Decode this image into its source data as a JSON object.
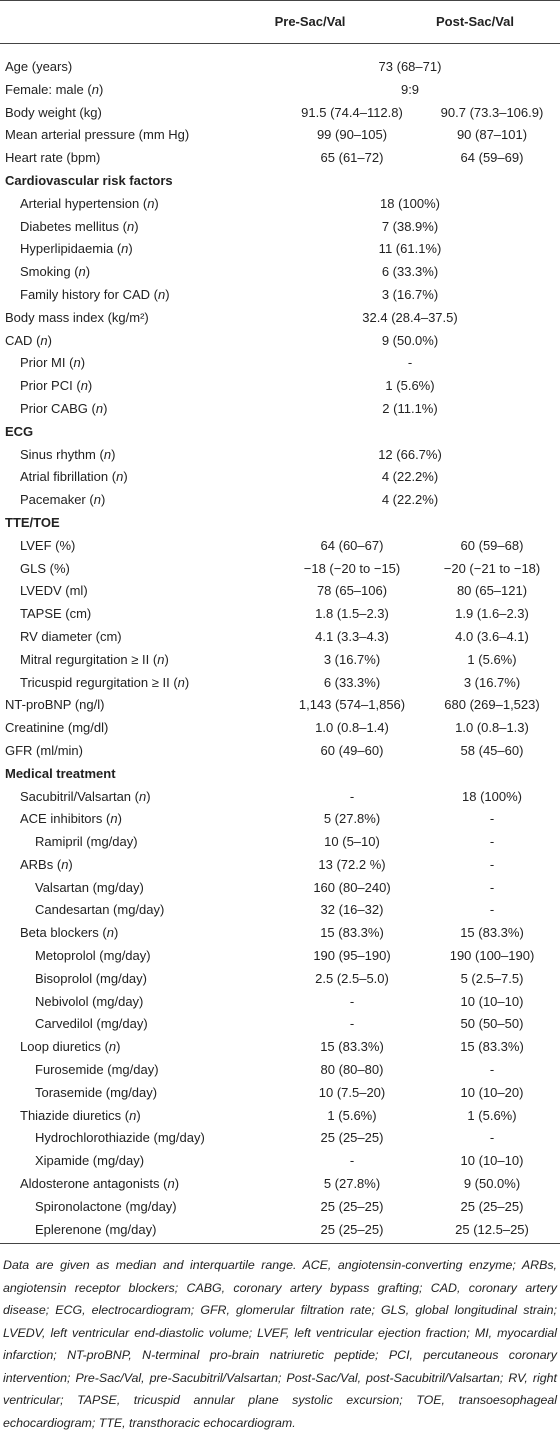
{
  "table": {
    "header": {
      "pre": "Pre-Sac/Val",
      "post": "Post-Sac/Val"
    },
    "rows": [
      {
        "label": "Age (years)",
        "both": "73 (68–71)"
      },
      {
        "label": "Female: male (n)",
        "both": "9:9"
      },
      {
        "label": "Body weight (kg)",
        "pre": "91.5 (74.4–112.8)",
        "post": "90.7 (73.3–106.9)"
      },
      {
        "label": "Mean arterial pressure (mm Hg)",
        "pre": "99 (90–105)",
        "post": "90 (87–101)"
      },
      {
        "label": "Heart rate (bpm)",
        "pre": "65 (61–72)",
        "post": "64 (59–69)"
      },
      {
        "section": "Cardiovascular risk factors",
        "items": [
          {
            "label": "Arterial hypertension (n)",
            "both": "18 (100%)"
          },
          {
            "label": "Diabetes mellitus (n)",
            "both": "7 (38.9%)"
          },
          {
            "label": "Hyperlipidaemia (n)",
            "both": "11 (61.1%)"
          },
          {
            "label": "Smoking (n)",
            "both": "6 (33.3%)"
          },
          {
            "label": "Family history for CAD (n)",
            "both": "3 (16.7%)"
          }
        ]
      },
      {
        "label": "Body mass index (kg/m²)",
        "both": "32.4 (28.4–37.5)"
      },
      {
        "label": "CAD (n)",
        "both": "9 (50.0%)",
        "items": [
          {
            "label": "Prior MI (n)",
            "both": "-"
          },
          {
            "label": "Prior PCI (n)",
            "both": "1 (5.6%)"
          },
          {
            "label": "Prior CABG (n)",
            "both": "2 (11.1%)"
          }
        ]
      },
      {
        "section": "ECG",
        "items": [
          {
            "label": "Sinus rhythm (n)",
            "both": "12 (66.7%)"
          },
          {
            "label": "Atrial fibrillation (n)",
            "both": "4 (22.2%)"
          },
          {
            "label": "Pacemaker (n)",
            "both": "4 (22.2%)"
          }
        ]
      },
      {
        "section": "TTE/TOE",
        "items": [
          {
            "label": "LVEF (%)",
            "pre": "64 (60–67)",
            "post": "60 (59–68)"
          },
          {
            "label": "GLS (%)",
            "pre": "−18 (−20 to −15)",
            "post": "−20 (−21 to −18)"
          },
          {
            "label": "LVEDV (ml)",
            "pre": "78 (65–106)",
            "post": "80 (65–121)"
          },
          {
            "label": "TAPSE (cm)",
            "pre": "1.8 (1.5–2.3)",
            "post": "1.9 (1.6–2.3)"
          },
          {
            "label": "RV diameter (cm)",
            "pre": "4.1 (3.3–4.3)",
            "post": "4.0 (3.6–4.1)"
          },
          {
            "label": "Mitral regurgitation ≥ II (n)",
            "pre": "3 (16.7%)",
            "post": "1 (5.6%)"
          },
          {
            "label": "Tricuspid regurgitation ≥ II (n)",
            "pre": "6 (33.3%)",
            "post": "3 (16.7%)"
          }
        ]
      },
      {
        "label": "NT-proBNP (ng/l)",
        "pre": "1,143 (574–1,856)",
        "post": "680 (269–1,523)"
      },
      {
        "label": "Creatinine (mg/dl)",
        "pre": "1.0 (0.8–1.4)",
        "post": "1.0 (0.8–1.3)"
      },
      {
        "label": "GFR (ml/min)",
        "pre": "60 (49–60)",
        "post": "58 (45–60)"
      },
      {
        "section": "Medical treatment",
        "items": [
          {
            "label": "Sacubitril/Valsartan (n)",
            "pre": "-",
            "post": "18 (100%)"
          },
          {
            "label": "ACE inhibitors (n)",
            "pre": "5 (27.8%)",
            "post": "-",
            "items": [
              {
                "label": "Ramipril (mg/day)",
                "pre": "10 (5–10)",
                "post": "-"
              }
            ]
          },
          {
            "label": "ARBs (n)",
            "pre": "13 (72.2 %)",
            "post": "-",
            "items": [
              {
                "label": "Valsartan (mg/day)",
                "pre": "160 (80–240)",
                "post": "-"
              },
              {
                "label": "Candesartan (mg/day)",
                "pre": "32 (16–32)",
                "post": "-"
              }
            ]
          },
          {
            "label": "Beta blockers (n)",
            "pre": "15 (83.3%)",
            "post": "15 (83.3%)",
            "items": [
              {
                "label": "Metoprolol (mg/day)",
                "pre": "190 (95–190)",
                "post": "190 (100–190)"
              },
              {
                "label": "Bisoprolol (mg/day)",
                "pre": "2.5 (2.5–5.0)",
                "post": "5 (2.5–7.5)"
              },
              {
                "label": "Nebivolol (mg/day)",
                "pre": "-",
                "post": "10 (10–10)"
              },
              {
                "label": "Carvedilol (mg/day)",
                "pre": "-",
                "post": "50 (50–50)"
              }
            ]
          },
          {
            "label": "Loop diuretics (n)",
            "pre": "15 (83.3%)",
            "post": "15 (83.3%)",
            "items": [
              {
                "label": "Furosemide (mg/day)",
                "pre": "80 (80–80)",
                "post": "-"
              },
              {
                "label": "Torasemide (mg/day)",
                "pre": "10 (7.5–20)",
                "post": "10 (10–20)"
              }
            ]
          },
          {
            "label": "Thiazide diuretics (n)",
            "pre": "1 (5.6%)",
            "post": "1 (5.6%)",
            "items": [
              {
                "label": "Hydrochlorothiazide (mg/day)",
                "pre": "25 (25–25)",
                "post": "-"
              },
              {
                "label": "Xipamide (mg/day)",
                "pre": "-",
                "post": "10 (10–10)"
              }
            ]
          },
          {
            "label": "Aldosterone antagonists (n)",
            "pre": "5 (27.8%)",
            "post": "9 (50.0%)",
            "items": [
              {
                "label": "Spironolactone (mg/day)",
                "pre": "25 (25–25)",
                "post": "25 (25–25)"
              },
              {
                "label": "Eplerenone (mg/day)",
                "pre": "25 (25–25)",
                "post": "25 (12.5–25)"
              }
            ]
          }
        ]
      }
    ],
    "footnote": "Data are given as median and interquartile range. ACE, angiotensin-converting enzyme; ARBs, angiotensin receptor blockers; CABG, coronary artery bypass grafting; CAD, coronary artery disease; ECG, electrocardiogram; GFR, glomerular filtration rate; GLS, global longitudinal strain; LVEDV, left ventricular end-diastolic volume; LVEF, left ventricular ejection fraction; MI, myocardial infarction; NT-proBNP, N-terminal pro-brain natriuretic peptide; PCI, percutaneous coronary intervention; Pre-Sac/Val, pre-Sacubitril/Valsartan; Post-Sac/Val, post-Sacubitril/Valsartan; RV, right ventricular; TAPSE, tricuspid annular plane systolic excursion; TOE, transoesophageal echocardiogram; TTE, transthoracic echocardiogram."
  }
}
